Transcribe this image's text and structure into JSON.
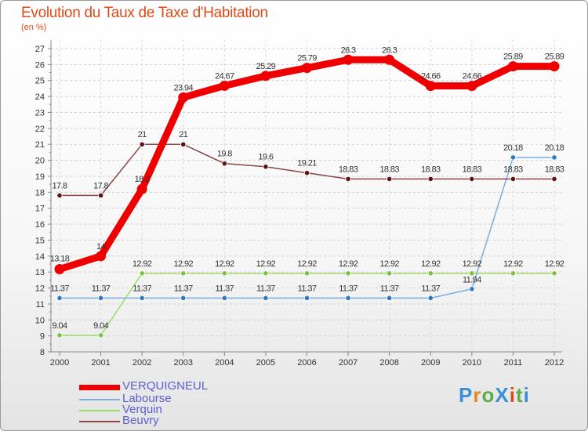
{
  "title": "Evolution du Taux de Taxe d'Habitation",
  "subtitle": "(en %)",
  "logo": {
    "text": "ProXiti",
    "colors": [
      "#3a8fd8",
      "#e8842a",
      "#5ab046",
      "#3a8fd8",
      "#e04a1a",
      "#5ab046",
      "#3a8fd8"
    ]
  },
  "chart_data": {
    "type": "line",
    "categories": [
      "2000",
      "2001",
      "2002",
      "2003",
      "2004",
      "2005",
      "2006",
      "2007",
      "2008",
      "2009",
      "2010",
      "2011",
      "2012"
    ],
    "ylim": [
      8,
      27
    ],
    "yticks": [
      8,
      9,
      10,
      11,
      12,
      13,
      14,
      15,
      16,
      17,
      18,
      19,
      20,
      21,
      22,
      23,
      24,
      25,
      26,
      27
    ],
    "grid": true,
    "legend_position": "bottom-left",
    "series": [
      {
        "name": "VERQUIGNEUL",
        "color": "#ee0000",
        "marker": "#ee0000",
        "values": [
          13.18,
          14,
          18.2,
          23.94,
          24.67,
          25.29,
          25.79,
          26.3,
          26.3,
          24.66,
          24.66,
          25.89,
          25.89
        ],
        "labels": [
          "13.18",
          "14",
          "18.2",
          "23.94",
          "24.67",
          "25.29",
          "25.79",
          "26.3",
          "26.3",
          "24.66",
          "24.66",
          "25.89",
          "25.89"
        ]
      },
      {
        "name": "Labourse",
        "color": "#7aaedc",
        "marker": "#2e79bf",
        "values": [
          11.37,
          11.37,
          11.37,
          11.37,
          11.37,
          11.37,
          11.37,
          11.37,
          11.37,
          11.37,
          11.94,
          20.18,
          20.18
        ],
        "labels": [
          "11.37",
          "11.37",
          "11.37",
          "11.37",
          "11.37",
          "11.37",
          "11.37",
          "11.37",
          "11.37",
          "11.37",
          "11.94",
          "20.18",
          "20.18"
        ]
      },
      {
        "name": "Verquin",
        "color": "#9cdc6a",
        "marker": "#7cc242",
        "values": [
          9.04,
          9.04,
          12.92,
          12.92,
          12.92,
          12.92,
          12.92,
          12.92,
          12.92,
          12.92,
          12.92,
          12.92,
          12.92
        ],
        "labels": [
          "9.04",
          "9.04",
          "12.92",
          "12.92",
          "12.92",
          "12.92",
          "12.92",
          "12.92",
          "12.92",
          "12.92",
          "12.92",
          "12.92",
          "12.92"
        ]
      },
      {
        "name": "Beuvry",
        "color": "#8a4646",
        "marker": "#5e1414",
        "values": [
          17.8,
          17.8,
          21,
          21,
          19.8,
          19.6,
          19.21,
          18.83,
          18.83,
          18.83,
          18.83,
          18.83,
          18.83
        ],
        "labels": [
          "17.8",
          "17.8",
          "21",
          "21",
          "19.8",
          "19.6",
          "19.21",
          "18.83",
          "18.83",
          "18.83",
          "18.83",
          "18.83",
          "18.83"
        ]
      }
    ]
  }
}
